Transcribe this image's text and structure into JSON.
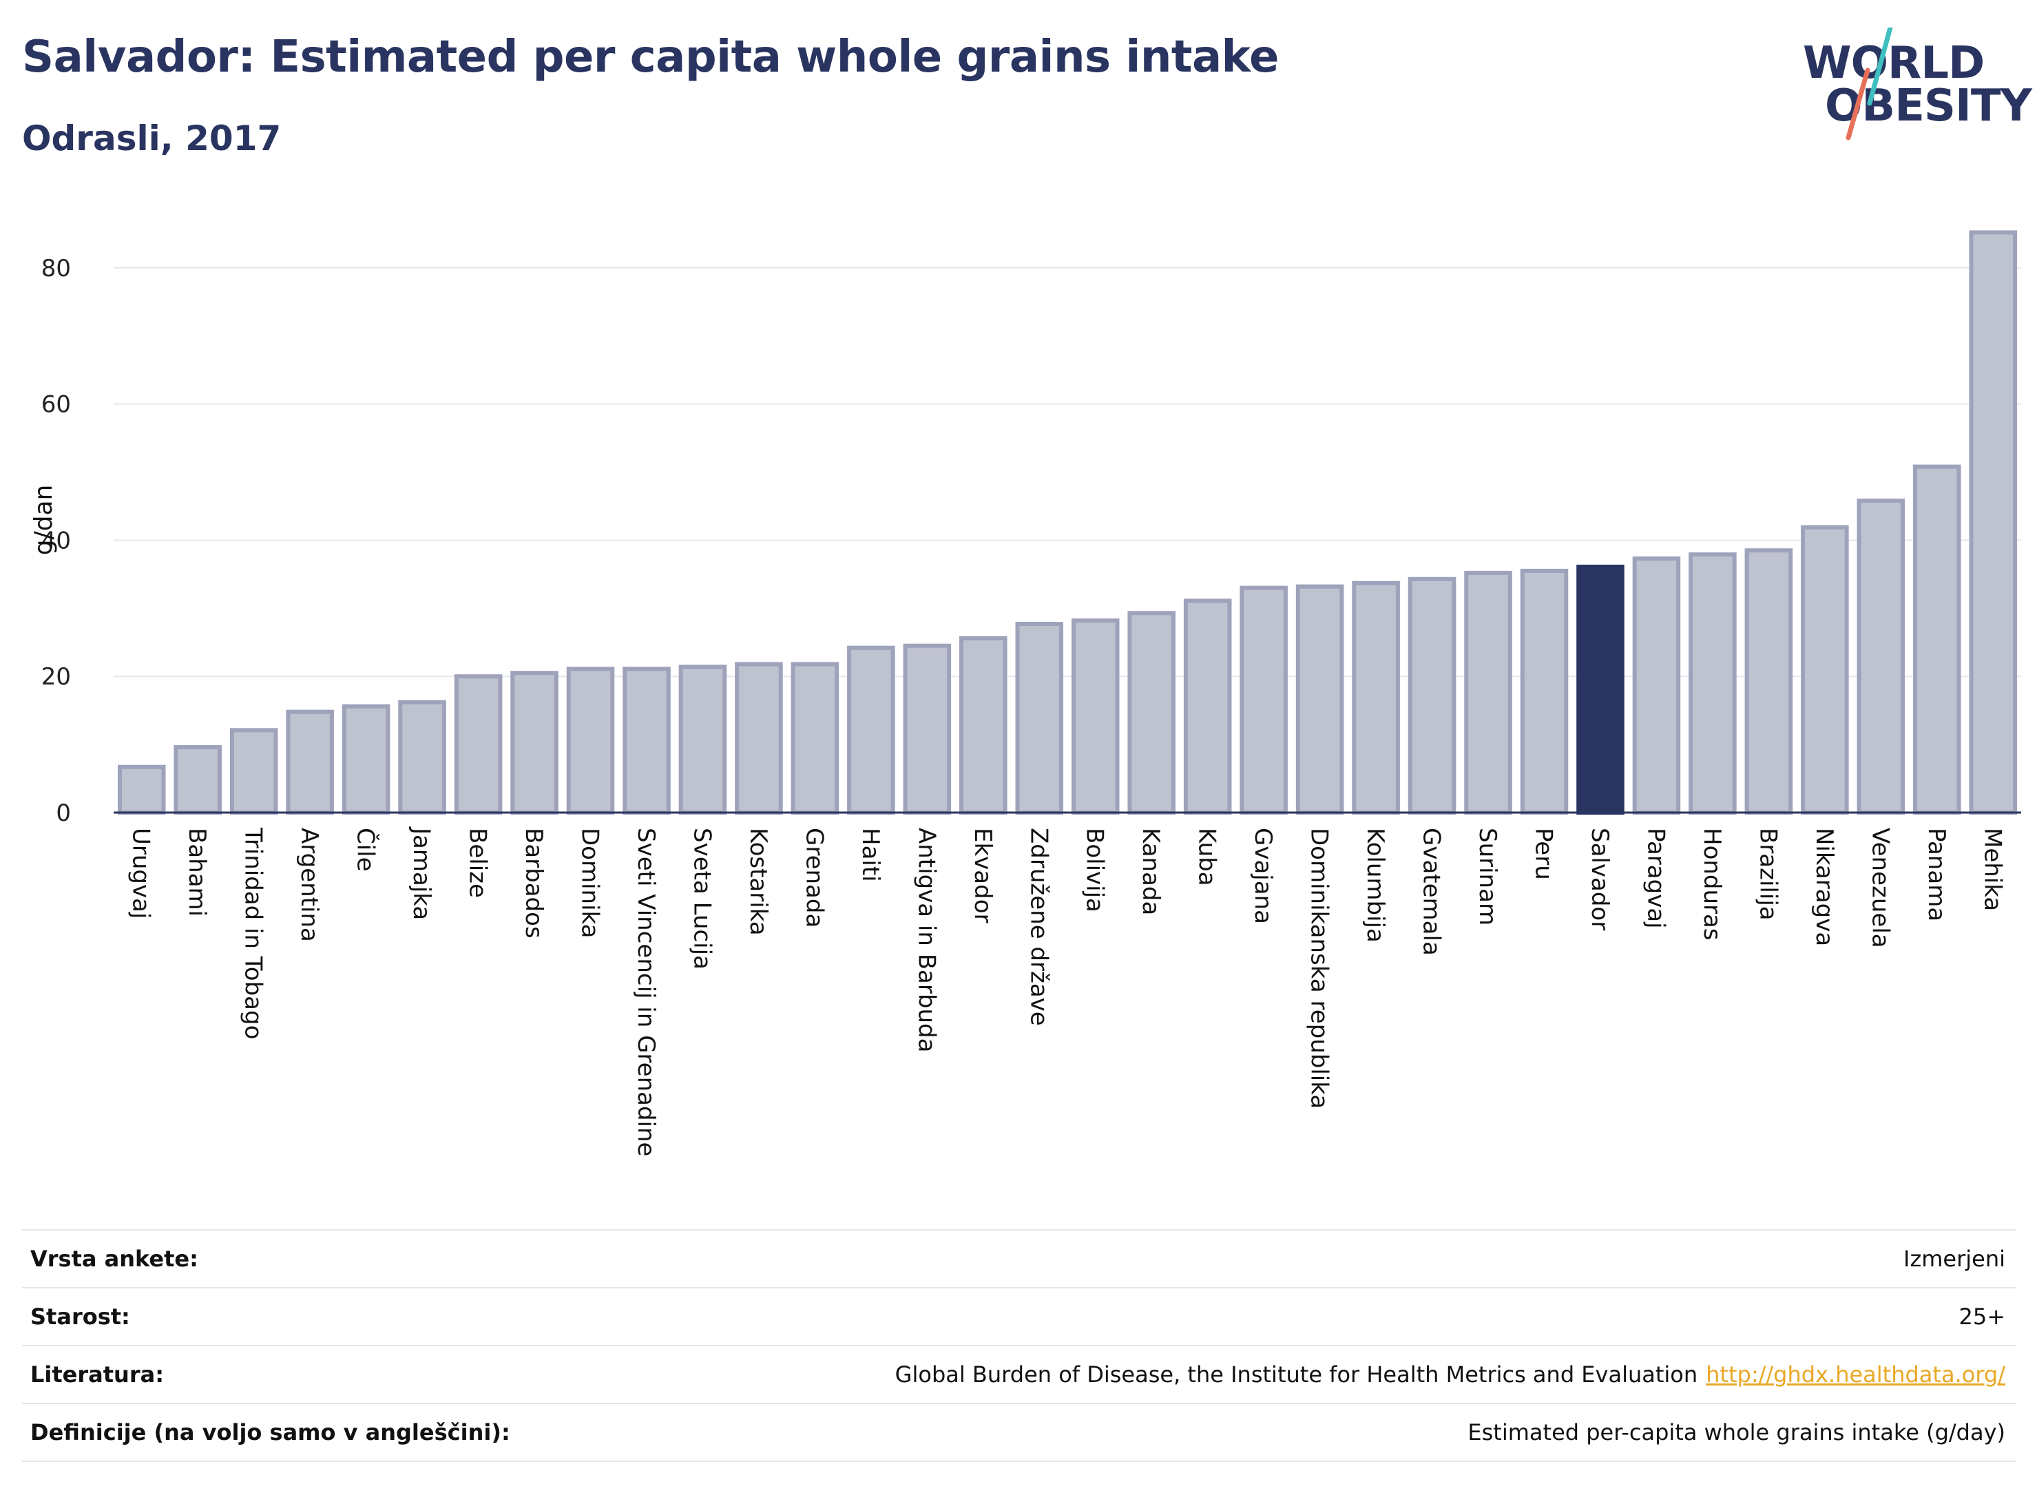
{
  "header": {
    "title": "Salvador: Estimated per capita whole grains intake",
    "subtitle": "Odrasli, 2017"
  },
  "logo": {
    "line1": "WORLD",
    "line2": "OBESITY",
    "slash_colors": [
      "#3fbfbf",
      "#e8705a"
    ]
  },
  "colors": {
    "bar": "#bfc2cf",
    "bar_border": "#9ea2ba",
    "highlight": "#2a3460",
    "grid": "#e6e7ee",
    "text": "#2a3460"
  },
  "chart_data": {
    "type": "bar",
    "ylabel": "g/dan",
    "ylim": [
      0,
      90
    ],
    "yticks": [
      0,
      20,
      40,
      60,
      80
    ],
    "grid": true,
    "highlight": "Salvador",
    "categories": [
      "Urugvaj",
      "Bahami",
      "Trinidad in Tobago",
      "Argentina",
      "Čile",
      "Jamajka",
      "Belize",
      "Barbados",
      "Dominika",
      "Sveti Vincencij in Grenadine",
      "Sveta Lucija",
      "Kostarika",
      "Grenada",
      "Haiti",
      "Antigva in Barbuda",
      "Ekvador",
      "Združene države",
      "Bolivija",
      "Kanada",
      "Kuba",
      "Gvajana",
      "Dominikanska republika",
      "Kolumbija",
      "Gvatemala",
      "Surinam",
      "Peru",
      "Salvador",
      "Paragvaj",
      "Honduras",
      "Brazilija",
      "Nikaragva",
      "Venezuela",
      "Panama",
      "Mehika"
    ],
    "values": [
      6.7,
      9.6,
      12.1,
      14.8,
      15.6,
      16.2,
      20.0,
      20.5,
      21.1,
      21.1,
      21.4,
      21.8,
      21.8,
      24.2,
      24.5,
      25.6,
      27.7,
      28.2,
      29.3,
      31.1,
      33.0,
      33.2,
      33.7,
      34.3,
      35.2,
      35.5,
      36.1,
      37.3,
      37.9,
      38.5,
      41.9,
      45.8,
      50.8,
      85.2
    ]
  },
  "meta": [
    {
      "key": "Vrsta ankete:",
      "value": "Izmerjeni"
    },
    {
      "key": "Starost:",
      "value": "25+"
    },
    {
      "key": "Literatura:",
      "value": "Global Burden of Disease, the Institute for Health Metrics and Evaluation",
      "link": "http://ghdx.healthdata.org/"
    },
    {
      "key": "Definicije (na voljo samo v angleščini):",
      "value": "Estimated per-capita whole grains intake (g/day)"
    }
  ]
}
